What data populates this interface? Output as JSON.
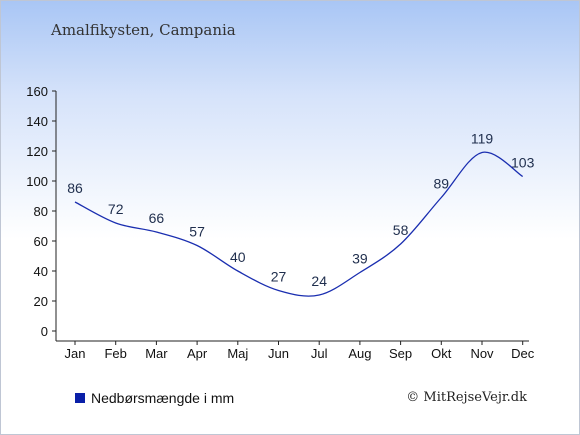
{
  "chart_data": {
    "type": "line",
    "title": "Amalfikysten, Campania",
    "categories": [
      "Jan",
      "Feb",
      "Mar",
      "Apr",
      "Maj",
      "Jun",
      "Jul",
      "Aug",
      "Sep",
      "Okt",
      "Nov",
      "Dec"
    ],
    "series": [
      {
        "name": "Nedbørsmængde i mm",
        "values": [
          86,
          72,
          66,
          57,
          40,
          27,
          24,
          39,
          58,
          89,
          119,
          103
        ]
      }
    ],
    "ylim": [
      0,
      160
    ],
    "yticks": [
      0,
      20,
      40,
      60,
      80,
      100,
      120,
      140,
      160
    ],
    "grid": false,
    "legend_position": "bottom-left",
    "line_color": "#1a2eb0"
  },
  "credit": "© MitRejseVejr.dk"
}
